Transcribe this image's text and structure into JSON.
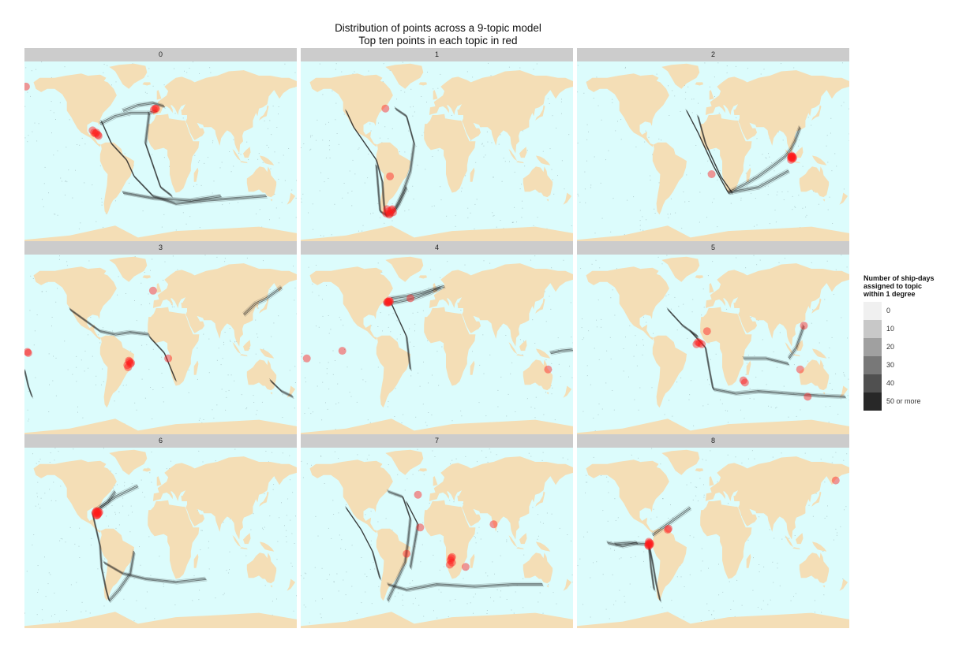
{
  "title": {
    "line1": "Distribution of points across a 9-topic model",
    "line2": "Top ten points in each topic in red"
  },
  "colors": {
    "ocean": "#dcfcfc",
    "land": "#f4deb6",
    "track": "#1e1e1e",
    "top_point": "#ff1a1a",
    "strip": "#cccccc"
  },
  "panels": [
    {
      "label": "0",
      "tracks": [
        [
          [
            -50,
            40
          ],
          [
            -30,
            45
          ],
          [
            -10,
            47
          ],
          [
            5,
            44
          ]
        ],
        [
          [
            -80,
            28
          ],
          [
            -60,
            35
          ],
          [
            -40,
            38
          ],
          [
            -15,
            38
          ],
          [
            -5,
            40
          ]
        ],
        [
          [
            -78,
            30
          ],
          [
            -65,
            10
          ],
          [
            -45,
            -5
          ],
          [
            -35,
            -20
          ]
        ],
        [
          [
            -35,
            -20
          ],
          [
            -10,
            -38
          ],
          [
            20,
            -45
          ],
          [
            60,
            -42
          ],
          [
            100,
            -40
          ],
          [
            140,
            -38
          ]
        ],
        [
          [
            -15,
            38
          ],
          [
            -20,
            10
          ],
          [
            -10,
            -10
          ],
          [
            0,
            -30
          ],
          [
            15,
            -38
          ]
        ],
        [
          [
            -50,
            -35
          ],
          [
            -10,
            -40
          ],
          [
            40,
            -42
          ],
          [
            80,
            -38
          ]
        ]
      ],
      "points": [
        [
          -178,
          62
        ],
        [
          -90,
          22
        ],
        [
          -85,
          20
        ],
        [
          -83,
          18
        ],
        [
          -82,
          17
        ],
        [
          -88,
          20
        ],
        [
          -86,
          19
        ],
        [
          -7,
          42
        ],
        [
          -9,
          41
        ],
        [
          -6,
          42
        ]
      ]
    },
    {
      "label": "1",
      "tracks": [
        [
          [
            -120,
            40
          ],
          [
            -110,
            25
          ],
          [
            -95,
            10
          ],
          [
            -80,
            -5
          ],
          [
            -72,
            -25
          ],
          [
            -70,
            -45
          ],
          [
            -68,
            -55
          ]
        ],
        [
          [
            -68,
            -55
          ],
          [
            -55,
            -50
          ],
          [
            -45,
            -35
          ],
          [
            -35,
            -15
          ],
          [
            -30,
            10
          ],
          [
            -40,
            35
          ],
          [
            -55,
            42
          ]
        ],
        [
          [
            -68,
            -55
          ],
          [
            -60,
            -55
          ],
          [
            -50,
            -45
          ],
          [
            -40,
            -30
          ]
        ],
        [
          [
            -80,
            -10
          ],
          [
            -77,
            -35
          ],
          [
            -75,
            -52
          ],
          [
            -66,
            -56
          ]
        ]
      ],
      "points": [
        [
          -68,
          42
        ],
        [
          -62,
          -20
        ],
        [
          -66,
          -50
        ],
        [
          -64,
          -52
        ],
        [
          -62,
          -54
        ],
        [
          -60,
          -51
        ],
        [
          -58,
          -53
        ],
        [
          -67,
          -54
        ],
        [
          -63,
          -55
        ],
        [
          -59,
          -50
        ]
      ]
    },
    {
      "label": "2",
      "tracks": [
        [
          [
            -35,
            40
          ],
          [
            -20,
            20
          ],
          [
            0,
            -10
          ],
          [
            20,
            -35
          ]
        ],
        [
          [
            20,
            -35
          ],
          [
            40,
            -28
          ],
          [
            60,
            -20
          ],
          [
            80,
            -10
          ],
          [
            95,
            -2
          ],
          [
            103,
            5
          ]
        ],
        [
          [
            20,
            -35
          ],
          [
            60,
            -30
          ],
          [
            100,
            -15
          ]
        ],
        [
          [
            103,
            5
          ],
          [
            108,
            12
          ],
          [
            115,
            25
          ]
        ],
        [
          [
            -20,
            35
          ],
          [
            -10,
            10
          ],
          [
            10,
            -20
          ],
          [
            25,
            -35
          ]
        ]
      ],
      "points": [
        [
          -2,
          -18
        ],
        [
          103,
          -3
        ],
        [
          104,
          -2
        ],
        [
          105,
          -4
        ],
        [
          104,
          -1
        ],
        [
          103,
          -2
        ],
        [
          106,
          -3
        ],
        [
          103,
          -5
        ],
        [
          104,
          -3
        ],
        [
          105,
          -2
        ]
      ]
    },
    {
      "label": "3",
      "tracks": [
        [
          [
            -180,
            -20
          ],
          [
            -175,
            -35
          ],
          [
            -170,
            -45
          ]
        ],
        [
          [
            -120,
            35
          ],
          [
            -100,
            25
          ],
          [
            -80,
            15
          ],
          [
            -60,
            12
          ],
          [
            -40,
            14
          ],
          [
            -15,
            12
          ]
        ],
        [
          [
            110,
            30
          ],
          [
            125,
            40
          ],
          [
            140,
            45
          ],
          [
            150,
            50
          ],
          [
            160,
            55
          ]
        ],
        [
          [
            145,
            -30
          ],
          [
            160,
            -40
          ],
          [
            175,
            -45
          ]
        ],
        [
          [
            -15,
            10
          ],
          [
            5,
            -5
          ],
          [
            20,
            -30
          ]
        ]
      ],
      "points": [
        [
          -175,
          -5
        ],
        [
          -176,
          -4
        ],
        [
          -43,
          -18
        ],
        [
          -40,
          -15
        ],
        [
          -42,
          -12
        ],
        [
          -10,
          52
        ],
        [
          10,
          -10
        ],
        [
          -44,
          -16
        ],
        [
          -39,
          -14
        ],
        [
          -41,
          -13
        ]
      ]
    },
    {
      "label": "4",
      "tracks": [
        [
          [
            -60,
            45
          ],
          [
            -40,
            47
          ],
          [
            -20,
            50
          ],
          [
            0,
            54
          ],
          [
            10,
            56
          ]
        ],
        [
          [
            -70,
            40
          ],
          [
            -50,
            42
          ],
          [
            -30,
            45
          ],
          [
            -10,
            50
          ],
          [
            5,
            55
          ]
        ],
        [
          [
            150,
            -5
          ],
          [
            165,
            -3
          ],
          [
            180,
            -2
          ]
        ],
        [
          [
            -60,
            40
          ],
          [
            -40,
            10
          ],
          [
            -35,
            -20
          ]
        ]
      ],
      "points": [
        [
          -65,
          42
        ],
        [
          -64,
          42
        ],
        [
          -66,
          41
        ],
        [
          -63,
          43
        ],
        [
          -62,
          42
        ],
        [
          -35,
          45
        ],
        [
          -172,
          -10
        ],
        [
          -125,
          -3
        ],
        [
          147,
          -20
        ],
        [
          -64,
          41
        ]
      ]
    },
    {
      "label": "5",
      "tracks": [
        [
          [
            -30,
            15
          ],
          [
            -10,
            0
          ],
          [
            -5,
            -20
          ],
          [
            0,
            -38
          ]
        ],
        [
          [
            0,
            -38
          ],
          [
            30,
            -42
          ],
          [
            60,
            -40
          ],
          [
            100,
            -42
          ],
          [
            140,
            -44
          ],
          [
            175,
            -45
          ]
        ],
        [
          [
            -60,
            35
          ],
          [
            -40,
            20
          ],
          [
            -20,
            10
          ]
        ],
        [
          [
            100,
            -10
          ],
          [
            110,
            0
          ],
          [
            120,
            20
          ]
        ],
        [
          [
            40,
            -10
          ],
          [
            70,
            -10
          ],
          [
            100,
            -15
          ]
        ]
      ],
      "points": [
        [
          -20,
          5
        ],
        [
          -18,
          4
        ],
        [
          -22,
          3
        ],
        [
          -15,
          3
        ],
        [
          -8,
          15
        ],
        [
          40,
          -30
        ],
        [
          42,
          -32
        ],
        [
          120,
          20
        ],
        [
          115,
          -20
        ],
        [
          125,
          -45
        ]
      ]
    },
    {
      "label": "6",
      "tracks": [
        [
          [
            -90,
            25
          ],
          [
            -85,
            10
          ],
          [
            -80,
            -5
          ],
          [
            -78,
            -25
          ],
          [
            -72,
            -45
          ],
          [
            -68,
            -55
          ]
        ],
        [
          [
            -68,
            -55
          ],
          [
            -55,
            -45
          ],
          [
            -40,
            -30
          ],
          [
            -35,
            -10
          ]
        ],
        [
          [
            -80,
            30
          ],
          [
            -70,
            35
          ],
          [
            -60,
            45
          ]
        ],
        [
          [
            -75,
            -20
          ],
          [
            -50,
            -30
          ],
          [
            -20,
            -35
          ],
          [
            20,
            -38
          ],
          [
            60,
            -35
          ]
        ],
        [
          [
            -85,
            28
          ],
          [
            -60,
            40
          ],
          [
            -30,
            50
          ]
        ]
      ],
      "points": [
        [
          -85,
          27
        ],
        [
          -84,
          26
        ],
        [
          -86,
          25
        ],
        [
          -83,
          24
        ],
        [
          -82,
          25
        ],
        [
          -85,
          23
        ],
        [
          -81,
          26
        ],
        [
          -84,
          23
        ],
        [
          -83,
          27
        ],
        [
          -86,
          26
        ]
      ]
    },
    {
      "label": "7",
      "tracks": [
        [
          [
            -65,
            45
          ],
          [
            -45,
            40
          ],
          [
            -35,
            20
          ],
          [
            -38,
            0
          ],
          [
            -42,
            -20
          ],
          [
            -55,
            -40
          ],
          [
            -65,
            -55
          ]
        ],
        [
          [
            -40,
            35
          ],
          [
            -25,
            15
          ],
          [
            -30,
            -5
          ],
          [
            -35,
            -25
          ]
        ],
        [
          [
            -65,
            -40
          ],
          [
            -40,
            -45
          ],
          [
            0,
            -40
          ],
          [
            50,
            -42
          ],
          [
            100,
            -40
          ],
          [
            140,
            -40
          ]
        ],
        [
          [
            -120,
            30
          ],
          [
            -100,
            10
          ],
          [
            -85,
            -10
          ],
          [
            -75,
            -35
          ]
        ]
      ],
      "points": [
        [
          -25,
          42
        ],
        [
          -22,
          12
        ],
        [
          -40,
          -12
        ],
        [
          20,
          -15
        ],
        [
          18,
          -18
        ],
        [
          17,
          -22
        ],
        [
          20,
          -20
        ],
        [
          38,
          -24
        ],
        [
          75,
          15
        ],
        [
          19,
          -16
        ]
      ]
    },
    {
      "label": "8",
      "tracks": [
        [
          [
            -130,
            -3
          ],
          [
            -110,
            -2
          ],
          [
            -95,
            -3
          ],
          [
            -85,
            -3
          ]
        ],
        [
          [
            -85,
            -3
          ],
          [
            -80,
            -20
          ],
          [
            -75,
            -40
          ],
          [
            -70,
            -55
          ]
        ],
        [
          [
            -140,
            -2
          ],
          [
            -120,
            -5
          ],
          [
            -100,
            -2
          ]
        ],
        [
          [
            -80,
            5
          ],
          [
            -70,
            10
          ],
          [
            -50,
            20
          ],
          [
            -30,
            30
          ]
        ],
        [
          [
            -85,
            -5
          ],
          [
            -82,
            -25
          ],
          [
            -78,
            -45
          ]
        ]
      ],
      "points": [
        [
          -85,
          -3
        ],
        [
          -84,
          -2
        ],
        [
          -86,
          -4
        ],
        [
          -83,
          -3
        ],
        [
          -85,
          -1
        ],
        [
          -85,
          -5
        ],
        [
          -60,
          10
        ],
        [
          -59,
          11
        ],
        [
          162,
          55
        ],
        [
          -84,
          -4
        ]
      ]
    }
  ],
  "legend": {
    "title_lines": [
      "Number of ship-days",
      "assigned to topic",
      "within 1 degree"
    ],
    "items": [
      {
        "label": "0",
        "color": "#f0f0f0"
      },
      {
        "label": "10",
        "color": "#c8c8c8"
      },
      {
        "label": "20",
        "color": "#a0a0a0"
      },
      {
        "label": "30",
        "color": "#787878"
      },
      {
        "label": "40",
        "color": "#505050"
      },
      {
        "label": "50 or more",
        "color": "#282828"
      }
    ]
  }
}
